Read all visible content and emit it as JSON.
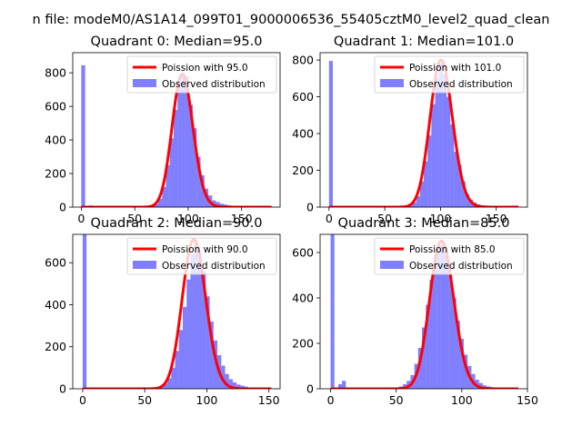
{
  "figure": {
    "suptitle": "n file: modeM0/AS1A14_099T01_9000006536_55405cztM0_level2_quad_clean"
  },
  "style": {
    "bar_color": "#0000ff",
    "bar_opacity": 0.5,
    "curve_color": "#ff0000",
    "legend_edge": "#cccccc"
  },
  "chart_data": [
    {
      "type": "bar",
      "title": "Quadrant 0: Median=95.0",
      "legend": [
        "Poission with 95.0",
        "Observed distribution"
      ],
      "legend_position": "top-right",
      "xlim": [
        -8,
        186
      ],
      "ylim": [
        0,
        920
      ],
      "xticks": [
        0,
        50,
        100,
        150
      ],
      "yticks": [
        0,
        200,
        400,
        600,
        800
      ],
      "hist": {
        "bin_width": 3.6,
        "bins": [
          [
            0,
            845
          ],
          [
            3.6,
            8
          ],
          [
            7.2,
            10
          ],
          [
            10.8,
            5
          ],
          [
            14.4,
            4
          ],
          [
            18,
            3
          ],
          [
            21.6,
            2
          ],
          [
            25.2,
            2
          ],
          [
            28.8,
            1
          ],
          [
            32.4,
            1
          ],
          [
            36,
            1
          ],
          [
            39.6,
            1
          ],
          [
            43.2,
            1
          ],
          [
            46.8,
            1
          ],
          [
            50.4,
            1
          ],
          [
            54,
            1
          ],
          [
            57.6,
            2
          ],
          [
            61.2,
            3
          ],
          [
            64.8,
            8
          ],
          [
            68.4,
            20
          ],
          [
            72,
            50
          ],
          [
            75.6,
            120
          ],
          [
            79.2,
            250
          ],
          [
            82.8,
            410
          ],
          [
            86.4,
            580
          ],
          [
            90,
            740
          ],
          [
            93.6,
            800
          ],
          [
            97.2,
            780
          ],
          [
            100.8,
            610
          ],
          [
            104.4,
            470
          ],
          [
            108,
            300
          ],
          [
            111.6,
            190
          ],
          [
            115.2,
            110
          ],
          [
            118.8,
            70
          ],
          [
            122.4,
            40
          ],
          [
            126,
            30
          ],
          [
            129.6,
            20
          ],
          [
            133.2,
            15
          ],
          [
            136.8,
            10
          ],
          [
            140.4,
            8
          ],
          [
            144,
            6
          ],
          [
            147.6,
            5
          ],
          [
            151.2,
            4
          ],
          [
            154.8,
            3
          ],
          [
            158.4,
            2
          ],
          [
            162,
            2
          ],
          [
            165.6,
            1
          ],
          [
            169.2,
            1
          ],
          [
            172.8,
            1
          ],
          [
            176.4,
            1
          ]
        ]
      },
      "poisson": {
        "mean": 95.0,
        "peak": 790,
        "x_range": [
          0,
          178
        ]
      }
    },
    {
      "type": "bar",
      "title": "Quadrant 1: Median=101.0",
      "legend": [
        "Poission with 101.0",
        "Observed distribution"
      ],
      "legend_position": "top-right",
      "xlim": [
        -8,
        178
      ],
      "ylim": [
        0,
        840
      ],
      "xticks": [
        0,
        50,
        100,
        150
      ],
      "yticks": [
        0,
        200,
        400,
        600,
        800
      ],
      "hist": {
        "bin_width": 3.4,
        "bins": [
          [
            0,
            795
          ],
          [
            3.4,
            6
          ],
          [
            6.8,
            5
          ],
          [
            10.2,
            4
          ],
          [
            13.6,
            3
          ],
          [
            17,
            2
          ],
          [
            20.4,
            2
          ],
          [
            23.8,
            1
          ],
          [
            27.2,
            1
          ],
          [
            30.6,
            1
          ],
          [
            34,
            1
          ],
          [
            37.4,
            1
          ],
          [
            40.8,
            1
          ],
          [
            44.2,
            1
          ],
          [
            47.6,
            1
          ],
          [
            51,
            1
          ],
          [
            54.4,
            1
          ],
          [
            57.8,
            1
          ],
          [
            61.2,
            2
          ],
          [
            64.6,
            3
          ],
          [
            68,
            5
          ],
          [
            71.4,
            10
          ],
          [
            74.8,
            25
          ],
          [
            78.2,
            60
          ],
          [
            81.6,
            140
          ],
          [
            85,
            250
          ],
          [
            88.4,
            390
          ],
          [
            91.8,
            560
          ],
          [
            95.2,
            700
          ],
          [
            98.6,
            780
          ],
          [
            102,
            720
          ],
          [
            105.4,
            600
          ],
          [
            108.8,
            450
          ],
          [
            112.2,
            300
          ],
          [
            115.6,
            230
          ],
          [
            119,
            140
          ],
          [
            122.4,
            70
          ],
          [
            125.8,
            40
          ],
          [
            129.2,
            25
          ],
          [
            132.6,
            15
          ],
          [
            136,
            10
          ],
          [
            139.4,
            8
          ],
          [
            142.8,
            6
          ],
          [
            146.2,
            4
          ],
          [
            149.6,
            3
          ],
          [
            153,
            2
          ],
          [
            156.4,
            2
          ],
          [
            159.8,
            1
          ],
          [
            163.2,
            1
          ],
          [
            166.6,
            1
          ]
        ]
      },
      "poisson": {
        "mean": 101.0,
        "peak": 800,
        "x_range": [
          0,
          170
        ]
      }
    },
    {
      "type": "bar",
      "title": "Quadrant 2: Median=90.0",
      "legend": [
        "Poission with 90.0",
        "Observed distribution"
      ],
      "legend_position": "top-right",
      "xlim": [
        -8,
        159
      ],
      "ylim": [
        0,
        735
      ],
      "xticks": [
        0,
        50,
        100,
        150
      ],
      "yticks": [
        0,
        200,
        400,
        600
      ],
      "hist": {
        "bin_width": 3.1,
        "bins": [
          [
            0,
            735
          ],
          [
            3.1,
            4
          ],
          [
            6.2,
            3
          ],
          [
            9.3,
            2
          ],
          [
            12.4,
            2
          ],
          [
            15.5,
            1
          ],
          [
            18.6,
            1
          ],
          [
            21.7,
            1
          ],
          [
            24.8,
            1
          ],
          [
            27.9,
            1
          ],
          [
            31,
            1
          ],
          [
            34.1,
            1
          ],
          [
            37.2,
            1
          ],
          [
            40.3,
            1
          ],
          [
            43.4,
            1
          ],
          [
            46.5,
            1
          ],
          [
            49.6,
            1
          ],
          [
            52.7,
            2
          ],
          [
            55.8,
            3
          ],
          [
            58.9,
            5
          ],
          [
            62,
            10
          ],
          [
            65.1,
            25
          ],
          [
            68.2,
            50
          ],
          [
            71.3,
            100
          ],
          [
            74.4,
            180
          ],
          [
            77.5,
            280
          ],
          [
            80.6,
            390
          ],
          [
            83.7,
            520
          ],
          [
            86.8,
            640
          ],
          [
            89.9,
            700
          ],
          [
            93,
            650
          ],
          [
            96.1,
            560
          ],
          [
            99.2,
            440
          ],
          [
            102.3,
            320
          ],
          [
            105.4,
            230
          ],
          [
            108.5,
            160
          ],
          [
            111.6,
            110
          ],
          [
            114.7,
            70
          ],
          [
            117.8,
            45
          ],
          [
            120.9,
            30
          ],
          [
            124,
            20
          ],
          [
            127.1,
            15
          ],
          [
            130.2,
            10
          ],
          [
            133.3,
            6
          ],
          [
            136.4,
            4
          ],
          [
            139.5,
            3
          ],
          [
            142.6,
            2
          ],
          [
            145.7,
            1
          ],
          [
            148.8,
            1
          ]
        ]
      },
      "poisson": {
        "mean": 90.0,
        "peak": 710,
        "x_range": [
          0,
          152
        ]
      }
    },
    {
      "type": "bar",
      "title": "Quadrant 3: Median=85.0",
      "legend": [
        "Poission with 85.0",
        "Observed distribution"
      ],
      "legend_position": "top-right",
      "xlim": [
        -8,
        150
      ],
      "ylim": [
        0,
        680
      ],
      "xticks": [
        0,
        50,
        100,
        150
      ],
      "yticks": [
        0,
        200,
        400,
        600
      ],
      "hist": {
        "bin_width": 2.9,
        "bins": [
          [
            0,
            680
          ],
          [
            2.9,
            3
          ],
          [
            5.8,
            20
          ],
          [
            8.7,
            35
          ],
          [
            11.6,
            2
          ],
          [
            14.5,
            2
          ],
          [
            17.4,
            1
          ],
          [
            20.3,
            1
          ],
          [
            23.2,
            1
          ],
          [
            26.1,
            1
          ],
          [
            29,
            1
          ],
          [
            31.9,
            1
          ],
          [
            34.8,
            1
          ],
          [
            37.7,
            1
          ],
          [
            40.6,
            1
          ],
          [
            43.5,
            2
          ],
          [
            46.4,
            3
          ],
          [
            49.3,
            5
          ],
          [
            52.2,
            10
          ],
          [
            55.1,
            20
          ],
          [
            58,
            35
          ],
          [
            60.9,
            60
          ],
          [
            63.8,
            110
          ],
          [
            66.7,
            180
          ],
          [
            69.6,
            270
          ],
          [
            72.5,
            370
          ],
          [
            75.4,
            480
          ],
          [
            78.3,
            580
          ],
          [
            81.2,
            630
          ],
          [
            84.1,
            640
          ],
          [
            87,
            590
          ],
          [
            89.9,
            500
          ],
          [
            92.8,
            400
          ],
          [
            95.7,
            300
          ],
          [
            98.6,
            220
          ],
          [
            101.5,
            150
          ],
          [
            104.4,
            100
          ],
          [
            107.3,
            65
          ],
          [
            110.2,
            40
          ],
          [
            113.1,
            25
          ],
          [
            116,
            15
          ],
          [
            118.9,
            10
          ],
          [
            121.8,
            7
          ],
          [
            124.7,
            5
          ],
          [
            127.6,
            3
          ],
          [
            130.5,
            2
          ],
          [
            133.4,
            1
          ],
          [
            136.3,
            1
          ],
          [
            139.2,
            1
          ]
        ]
      },
      "poisson": {
        "mean": 85.0,
        "peak": 650,
        "x_range": [
          0,
          143
        ]
      }
    }
  ]
}
